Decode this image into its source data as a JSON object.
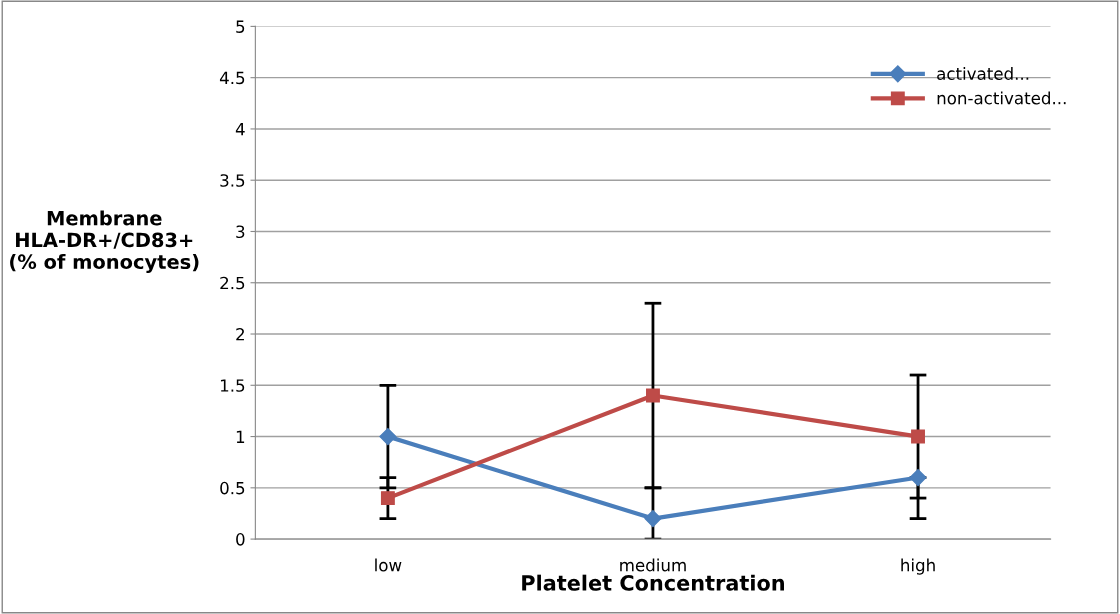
{
  "chart_data": {
    "type": "line",
    "xlabel": "Platelet Concentration",
    "ylabel": "Membrane\nHLA-DR+/CD83+\n(% of monocytes)",
    "categories": [
      "low",
      "medium",
      "high"
    ],
    "series": [
      {
        "name": "activated...",
        "color": "#4a7ebb",
        "values": [
          1.0,
          0.2,
          0.6
        ],
        "marker": "diamond",
        "errors": [
          [
            0.5,
            1.5
          ],
          [
            0,
            0.5
          ],
          [
            0.2,
            0.6
          ]
        ]
      },
      {
        "name": "non-activated...",
        "color": "#be4b48",
        "values": [
          0.4,
          1.4,
          1.0
        ],
        "marker": "square",
        "errors": [
          [
            0.2,
            0.6
          ],
          [
            0.5,
            2.3
          ],
          [
            0.4,
            1.6
          ]
        ]
      }
    ],
    "ylim": [
      0,
      5
    ],
    "yticks": [
      0,
      0.5,
      1,
      1.5,
      2,
      2.5,
      3,
      3.5,
      4,
      4.5,
      5
    ],
    "grid": "y",
    "legend": "top right"
  }
}
